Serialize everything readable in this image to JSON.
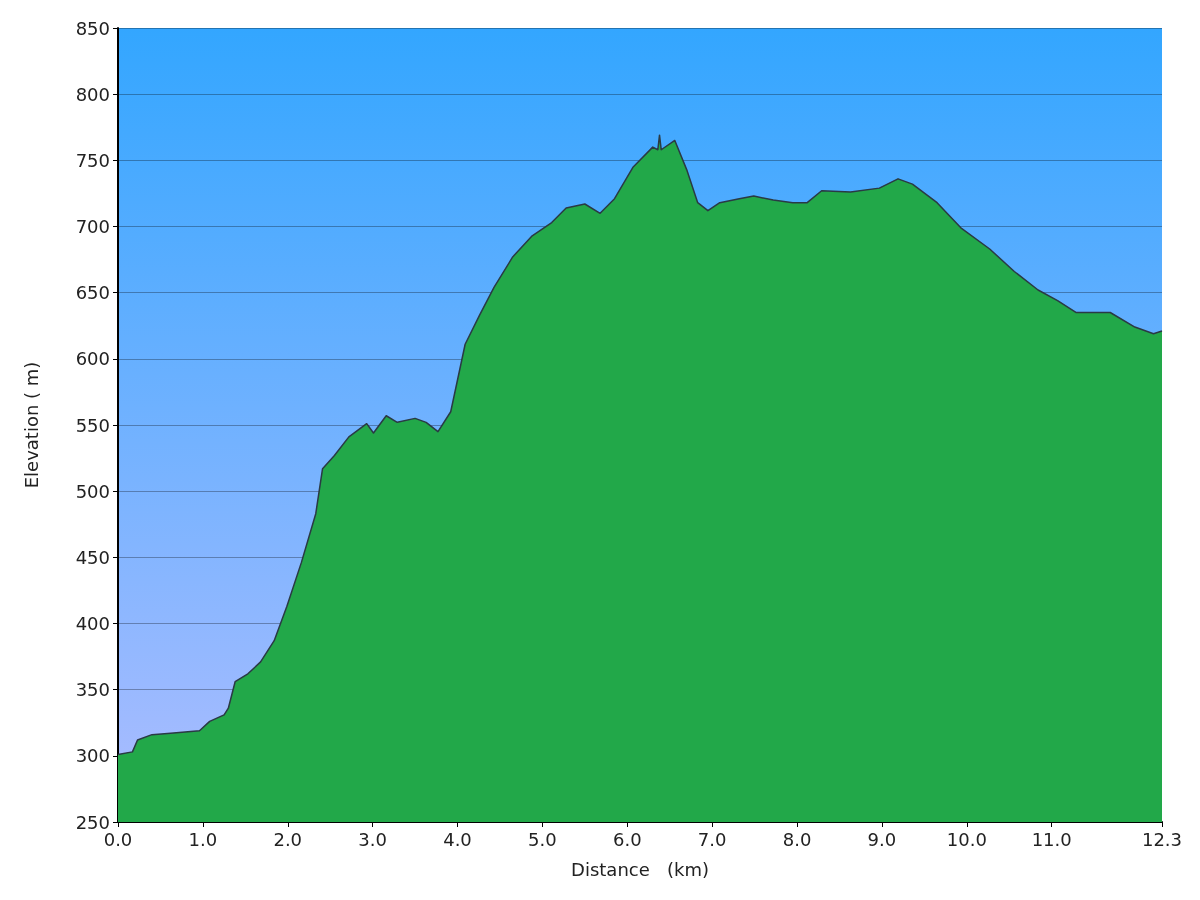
{
  "chart_data": {
    "type": "area",
    "xlabel": "Distance   (km)",
    "ylabel": "Elevation ( m)",
    "xlim": [
      0,
      12.3
    ],
    "xticks": [
      {
        "value": 0,
        "label": "0.0"
      },
      {
        "value": 1,
        "label": "1.0"
      },
      {
        "value": 2,
        "label": "2.0"
      },
      {
        "value": 3,
        "label": "3.0"
      },
      {
        "value": 4,
        "label": "4.0"
      },
      {
        "value": 5,
        "label": "5.0"
      },
      {
        "value": 6,
        "label": "6.0"
      },
      {
        "value": 7,
        "label": "7.0"
      },
      {
        "value": 8,
        "label": "8.0"
      },
      {
        "value": 9,
        "label": "9.0"
      },
      {
        "value": 10,
        "label": "10.0"
      },
      {
        "value": 11,
        "label": "11.0"
      },
      {
        "value": 12.3,
        "label": "12.3"
      }
    ],
    "ylim": [
      250,
      850
    ],
    "yticks": [
      250,
      300,
      350,
      400,
      450,
      500,
      550,
      600,
      650,
      700,
      750,
      800,
      850
    ],
    "grid": "y",
    "series": [
      {
        "color": "#22a849",
        "x": [
          0,
          0.17,
          0.23,
          0.4,
          0.62,
          0.96,
          1.08,
          1.25,
          1.3,
          1.38,
          1.53,
          1.68,
          1.84,
          1.99,
          2.16,
          2.33,
          2.41,
          2.55,
          2.72,
          2.93,
          3.01,
          3.16,
          3.29,
          3.5,
          3.63,
          3.77,
          3.92,
          4.09,
          4.26,
          4.43,
          4.65,
          4.88,
          5.11,
          5.28,
          5.5,
          5.68,
          5.85,
          6.07,
          6.3,
          6.36,
          6.38,
          6.4,
          6.56,
          6.7,
          6.83,
          6.95,
          7.09,
          7.32,
          7.49,
          7.72,
          7.95,
          8.12,
          8.29,
          8.63,
          8.97,
          9.19,
          9.36,
          9.65,
          9.93,
          10.27,
          10.56,
          10.84,
          11.07,
          11.29,
          11.69,
          11.98,
          12.2,
          12.3
        ],
        "values": [
          301,
          303,
          312,
          316,
          317,
          319,
          326,
          331,
          336,
          356,
          362,
          371,
          387,
          413,
          446,
          483,
          517,
          527,
          541,
          551,
          544,
          557,
          552,
          555,
          552,
          545,
          560,
          611,
          633,
          654,
          677,
          693,
          703,
          714,
          717,
          710,
          721,
          745,
          760,
          758,
          769,
          758,
          765,
          743,
          718,
          712,
          718,
          721,
          723,
          720,
          718,
          718,
          727,
          726,
          729,
          736,
          732,
          718,
          699,
          683,
          666,
          652,
          644,
          635,
          635,
          624,
          619,
          621
        ]
      }
    ]
  }
}
